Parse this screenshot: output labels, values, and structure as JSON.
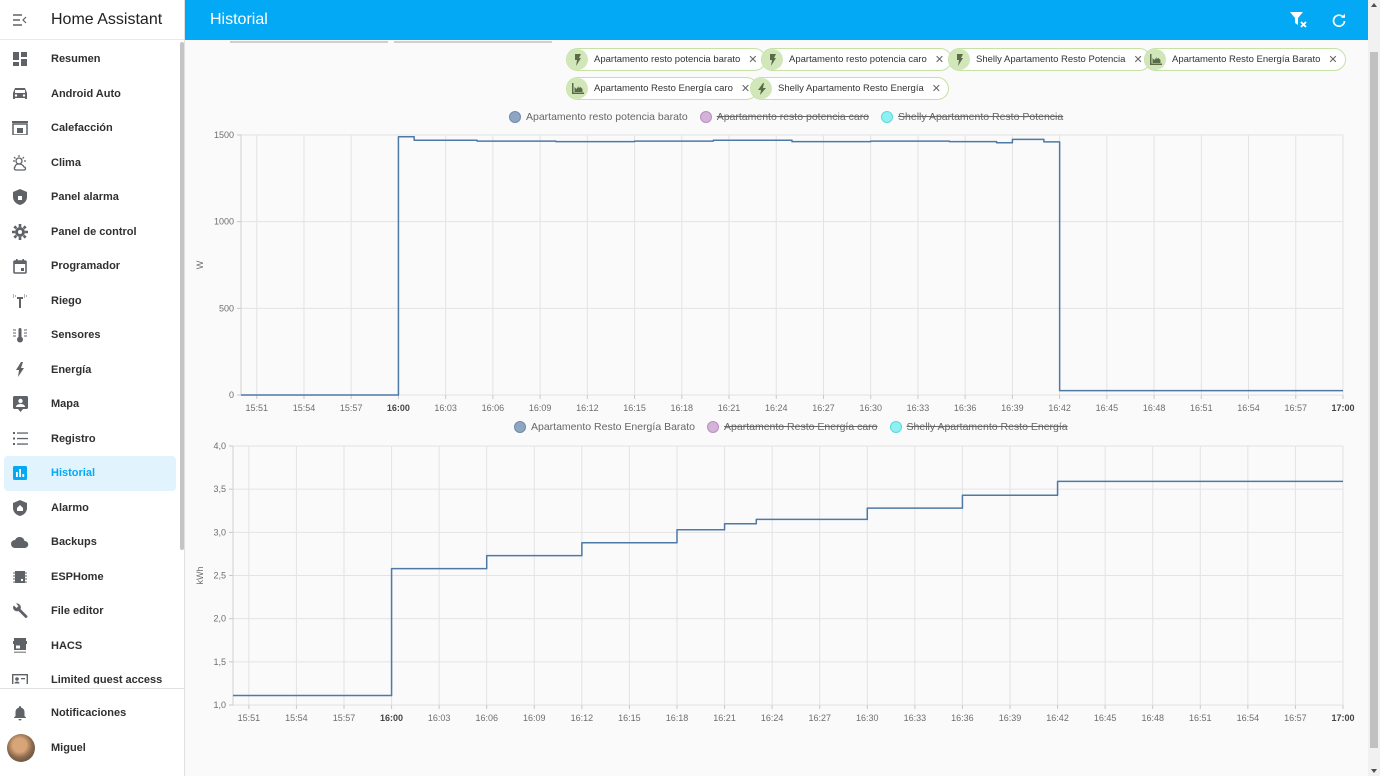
{
  "sidebar": {
    "title": "Home Assistant",
    "items": [
      {
        "label": "Resumen",
        "icon": "dashboard-icon"
      },
      {
        "label": "Android Auto",
        "icon": "car-icon"
      },
      {
        "label": "Calefacción",
        "icon": "fireplace-icon"
      },
      {
        "label": "Clima",
        "icon": "weather-icon"
      },
      {
        "label": "Panel alarma",
        "icon": "shield-lock-icon"
      },
      {
        "label": "Panel de control",
        "icon": "gear-icon"
      },
      {
        "label": "Programador",
        "icon": "calendar-icon"
      },
      {
        "label": "Riego",
        "icon": "sprinkler-icon"
      },
      {
        "label": "Sensores",
        "icon": "thermometer-icon"
      },
      {
        "label": "Energía",
        "icon": "lightning-icon"
      },
      {
        "label": "Mapa",
        "icon": "map-account-icon"
      },
      {
        "label": "Registro",
        "icon": "list-icon"
      },
      {
        "label": "Historial",
        "icon": "chart-bar-icon",
        "active": true
      },
      {
        "label": "Alarmo",
        "icon": "shield-home-icon"
      },
      {
        "label": "Backups",
        "icon": "cloud-icon"
      },
      {
        "label": "ESPHome",
        "icon": "chip-icon"
      },
      {
        "label": "File editor",
        "icon": "wrench-icon"
      },
      {
        "label": "HACS",
        "icon": "hacs-icon"
      },
      {
        "label": "Limited guest access",
        "icon": "card-account-icon"
      }
    ],
    "notifications_label": "Notificaciones",
    "user_label": "Miguel"
  },
  "header": {
    "title": "Historial",
    "actions": [
      "filter-remove-icon",
      "refresh-icon"
    ]
  },
  "targets": [
    {
      "label": "Apartamento resto potencia barato",
      "icon": "flash-icon"
    },
    {
      "label": "Apartamento resto potencia caro",
      "icon": "flash-icon"
    },
    {
      "label": "Shelly Apartamento Resto Potencia",
      "icon": "flash-icon"
    },
    {
      "label": "Apartamento Resto Energía Barato",
      "icon": "chart-area-icon"
    },
    {
      "label": "Apartamento Resto Energía caro",
      "icon": "chart-area-icon"
    },
    {
      "label": "Shelly Apartamento Resto Energía",
      "icon": "lightning-bolt-icon"
    }
  ],
  "colors": {
    "accent": "#03a9f4",
    "series_blue": "#4e79a7",
    "series_purple": "#c69ecb",
    "series_cyan": "#76e5e9"
  },
  "chart_data": [
    {
      "type": "line",
      "title": "",
      "xlabel": "",
      "ylabel": "W",
      "ylim": [
        0,
        1500
      ],
      "yticks": [
        "0",
        "500",
        "1000",
        "1500"
      ],
      "xticks": [
        "15:51",
        "15:54",
        "15:57",
        "16:00",
        "16:03",
        "16:06",
        "16:09",
        "16:12",
        "16:15",
        "16:18",
        "16:21",
        "16:24",
        "16:27",
        "16:30",
        "16:33",
        "16:36",
        "16:39",
        "16:42",
        "16:45",
        "16:48",
        "16:51",
        "16:54",
        "16:57",
        "17:00"
      ],
      "bold_ticks": [
        "16:00",
        "17:00"
      ],
      "grid": true,
      "legend_position": "top",
      "legend": [
        {
          "name": "Apartamento resto potencia barato",
          "color": "#4e79a7",
          "hidden": false
        },
        {
          "name": "Apartamento resto potencia caro",
          "color": "#c69ecb",
          "hidden": true
        },
        {
          "name": "Shelly Apartamento Resto Potencia",
          "color": "#76e5e9",
          "hidden": true
        }
      ],
      "series": [
        {
          "name": "Apartamento resto potencia barato",
          "step": true,
          "x": [
            "15:50",
            "16:00",
            "16:00",
            "16:01",
            "16:05",
            "16:10",
            "16:15",
            "16:20",
            "16:25",
            "16:30",
            "16:35",
            "16:38",
            "16:39",
            "16:40",
            "16:41",
            "16:42",
            "16:42",
            "16:50",
            "17:00"
          ],
          "values": [
            0,
            0,
            1490,
            1470,
            1465,
            1462,
            1465,
            1470,
            1462,
            1465,
            1462,
            1455,
            1475,
            1475,
            1460,
            1460,
            25,
            25,
            25
          ]
        }
      ]
    },
    {
      "type": "line",
      "title": "",
      "xlabel": "",
      "ylabel": "kWh",
      "ylim": [
        1.0,
        4.0
      ],
      "yticks": [
        "1,0",
        "1,5",
        "2,0",
        "2,5",
        "3,0",
        "3,5",
        "4,0"
      ],
      "xticks": [
        "15:51",
        "15:54",
        "15:57",
        "16:00",
        "16:03",
        "16:06",
        "16:09",
        "16:12",
        "16:15",
        "16:18",
        "16:21",
        "16:24",
        "16:27",
        "16:30",
        "16:33",
        "16:36",
        "16:39",
        "16:42",
        "16:45",
        "16:48",
        "16:51",
        "16:54",
        "16:57",
        "17:00"
      ],
      "bold_ticks": [
        "16:00",
        "17:00"
      ],
      "grid": true,
      "legend_position": "top",
      "legend": [
        {
          "name": "Apartamento Resto Energía Barato",
          "color": "#4e79a7",
          "hidden": false
        },
        {
          "name": "Apartamento Resto Energía caro",
          "color": "#c69ecb",
          "hidden": true
        },
        {
          "name": "Shelly Apartamento Resto Energía",
          "color": "#76e5e9",
          "hidden": true
        }
      ],
      "series": [
        {
          "name": "Apartamento Resto Energía Barato",
          "step": true,
          "x": [
            "15:50",
            "16:00",
            "16:00",
            "16:06",
            "16:12",
            "16:18",
            "16:21",
            "16:23",
            "16:24",
            "16:30",
            "16:36",
            "16:42",
            "16:42",
            "17:00"
          ],
          "values": [
            1.11,
            1.11,
            2.58,
            2.73,
            2.88,
            3.03,
            3.1,
            3.15,
            3.15,
            3.28,
            3.43,
            3.57,
            3.59,
            3.59
          ]
        }
      ]
    }
  ]
}
